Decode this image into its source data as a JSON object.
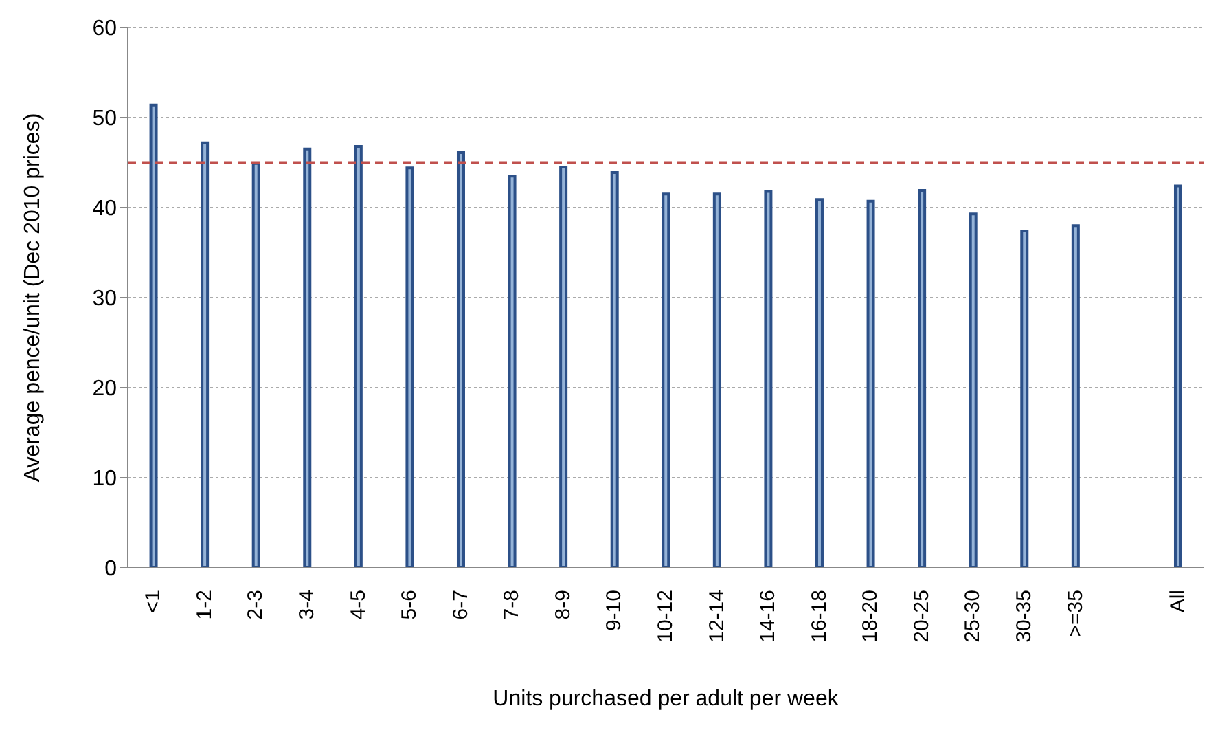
{
  "chart_data": {
    "type": "bar",
    "xlabel": "Units purchased per adult per week",
    "ylabel": "Average pence/unit (Dec 2010 prices)",
    "categories": [
      "<1",
      "1-2",
      "2-3",
      "3-4",
      "4-5",
      "5-6",
      "6-7",
      "7-8",
      "8-9",
      "9-10",
      "10-12",
      "12-14",
      "14-16",
      "16-18",
      "18-20",
      "20-25",
      "25-30",
      "30-35",
      ">=35",
      null,
      "All"
    ],
    "values": [
      51.4,
      47.2,
      44.9,
      46.5,
      46.8,
      44.4,
      46.1,
      43.5,
      44.5,
      43.9,
      41.5,
      41.5,
      41.8,
      40.9,
      40.7,
      41.9,
      39.3,
      37.4,
      38.0,
      null,
      42.4
    ],
    "color": "#95b3d7",
    "ylim": [
      0,
      60
    ],
    "yticks": [
      0,
      10,
      20,
      30,
      40,
      50,
      60
    ],
    "grid": "y",
    "legend": false,
    "ref_lines": [
      {
        "axis": "y",
        "value": 45,
        "color": "#c0504d",
        "line_style": "dashed"
      }
    ]
  }
}
